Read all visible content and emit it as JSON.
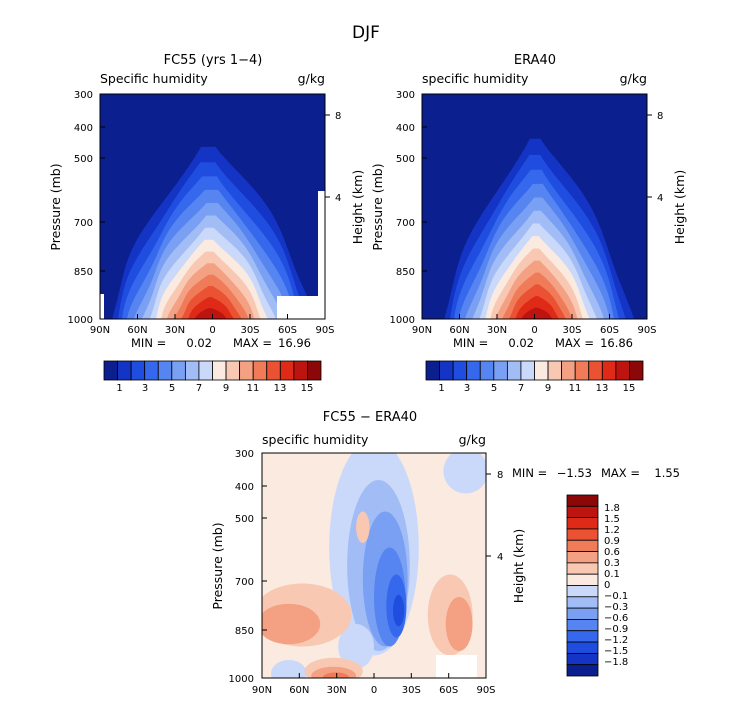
{
  "figure": {
    "title": "DJF"
  },
  "scales": {
    "humidity_levels": [
      1,
      2,
      3,
      4,
      5,
      6,
      7,
      8,
      9,
      10,
      11,
      12,
      13,
      14,
      15
    ],
    "humidity_colors": [
      "#0b1f8f",
      "#1334c4",
      "#1f4de0",
      "#3568ec",
      "#5684f0",
      "#7aa0f3",
      "#a2bdf6",
      "#cad9fa",
      "#faeadf",
      "#f8c8b3",
      "#f4a183",
      "#f07b59",
      "#ea5233",
      "#e02a18",
      "#bd1410",
      "#8c0808"
    ],
    "humidity_colorbar_labels": [
      "1",
      "3",
      "5",
      "7",
      "9",
      "11",
      "13",
      "15"
    ],
    "diff_levels": [
      -1.8,
      -1.5,
      -1.2,
      -0.9,
      -0.6,
      -0.3,
      -0.1,
      0,
      0.1,
      0.3,
      0.6,
      0.9,
      1.2,
      1.5,
      1.8
    ],
    "diff_colors": [
      "#0b1f8f",
      "#1334c4",
      "#1f4de0",
      "#3568ec",
      "#5684f0",
      "#7aa0f3",
      "#a2bdf6",
      "#cad9fa",
      "#faeadf",
      "#f8c8b3",
      "#f4a183",
      "#f07b59",
      "#ea5233",
      "#e02a18",
      "#bd1410",
      "#8c0808"
    ],
    "diff_colorbar_labels": [
      "1.8",
      "1.5",
      "1.2",
      "0.9",
      "0.6",
      "0.3",
      "0.1",
      "0",
      "−0.1",
      "−0.3",
      "−0.6",
      "−0.9",
      "−1.2",
      "−1.5",
      "−1.8"
    ]
  },
  "chart_data": [
    {
      "type": "heatmap",
      "title": "FC55 (yrs 1−4)",
      "subtitle_left": "Specific humidity",
      "units": "g/kg",
      "xlabel": "",
      "ylabel": "Pressure (mb)",
      "ylabel_right": "Height (km)",
      "x_ticks": [
        "90N",
        "60N",
        "30N",
        "0",
        "30S",
        "60S",
        "90S"
      ],
      "y_ticks": [
        "300",
        "400",
        "500",
        "700",
        "850",
        "1000"
      ],
      "y_right_ticks": [
        "8",
        "4"
      ],
      "min_label": "MIN =",
      "min_value": "0.02",
      "max_label": "MAX =",
      "max_value": "16.96",
      "xlim": [
        90,
        -90
      ],
      "ylim": [
        1000,
        300
      ],
      "field": "humidity"
    },
    {
      "type": "heatmap",
      "title": "ERA40",
      "subtitle_left": "specific humidity",
      "units": "g/kg",
      "xlabel": "",
      "ylabel": "Pressure (mb)",
      "ylabel_right": "Height (km)",
      "x_ticks": [
        "90N",
        "60N",
        "30N",
        "0",
        "30S",
        "60S",
        "90S"
      ],
      "y_ticks": [
        "300",
        "400",
        "500",
        "700",
        "850",
        "1000"
      ],
      "y_right_ticks": [
        "8",
        "4"
      ],
      "min_label": "MIN =",
      "min_value": "0.02",
      "max_label": "MAX =",
      "max_value": "16.86",
      "xlim": [
        90,
        -90
      ],
      "ylim": [
        1000,
        300
      ],
      "field": "humidity"
    },
    {
      "type": "heatmap",
      "title": "FC55 − ERA40",
      "subtitle_left": "specific humidity",
      "units": "g/kg",
      "xlabel": "",
      "ylabel": "Pressure (mb)",
      "ylabel_right": "Height (km)",
      "x_ticks": [
        "90N",
        "60N",
        "30N",
        "0",
        "30S",
        "60S",
        "90S"
      ],
      "y_ticks": [
        "300",
        "400",
        "500",
        "700",
        "850",
        "1000"
      ],
      "y_right_ticks": [
        "8",
        "4"
      ],
      "min_label": "MIN =",
      "min_value": "−1.53",
      "max_label": "MAX =",
      "max_value": "1.55",
      "xlim": [
        90,
        -90
      ],
      "ylim": [
        1000,
        300
      ],
      "field": "difference"
    }
  ]
}
